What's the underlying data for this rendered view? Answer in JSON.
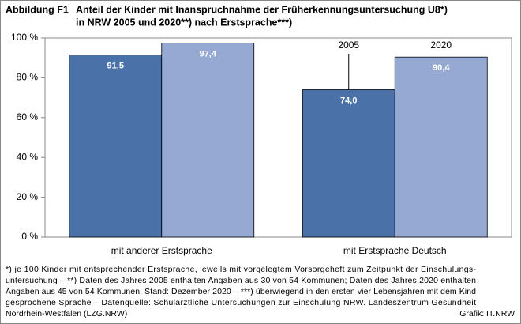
{
  "chart_data": {
    "type": "bar",
    "figure_label": "Abbildung F1",
    "title": [
      "Anteil der Kinder mit Inanspruchnahme der Früherkennungsuntersuchung U8*)",
      "in NRW 2005 und 2020**) nach Erstsprache***)"
    ],
    "categories": [
      "mit anderer Erstsprache",
      "mit Erstsprache Deutsch"
    ],
    "series": [
      {
        "name": "2005",
        "color": "#4a72a8",
        "values": [
          91.5,
          74.0
        ],
        "value_labels": [
          "91,5",
          "74,0"
        ]
      },
      {
        "name": "2020",
        "color": "#95a9d2",
        "values": [
          97.4,
          90.4
        ],
        "value_labels": [
          "97,4",
          "90,4"
        ]
      }
    ],
    "ylim": [
      0,
      100
    ],
    "yticks": [
      {
        "value": 0,
        "label": "0 %"
      },
      {
        "value": 20,
        "label": "20 %"
      },
      {
        "value": 40,
        "label": "40 %"
      },
      {
        "value": 60,
        "label": "60 %"
      },
      {
        "value": 80,
        "label": "80 %"
      },
      {
        "value": 100,
        "label": "100 %"
      }
    ],
    "footnote": [
      "*) je 100 Kinder mit entsprechender Erstsprache, jeweils mit vorgelegtem Vorsorgeheft zum Zeitpunkt der Einschulungs-",
      "untersuchung – **) Daten des Jahres 2005 enthalten Angaben aus 30 von 54 Kommunen; Daten des Jahres 2020 enthalten",
      "Angaben aus 45 von 54 Kommunen; Stand: Dezember 2020 – ***) überwiegend in den ersten vier Lebensjahren mit dem Kind",
      "gesprochene Sprache – Datenquelle: Schulärztliche Untersuchungen zur Einschulung NRW. Landeszentrum Gesundheit",
      "Nordrhein-Westfalen (LZG.NRW)"
    ],
    "source": "Grafik: IT.NRW"
  }
}
